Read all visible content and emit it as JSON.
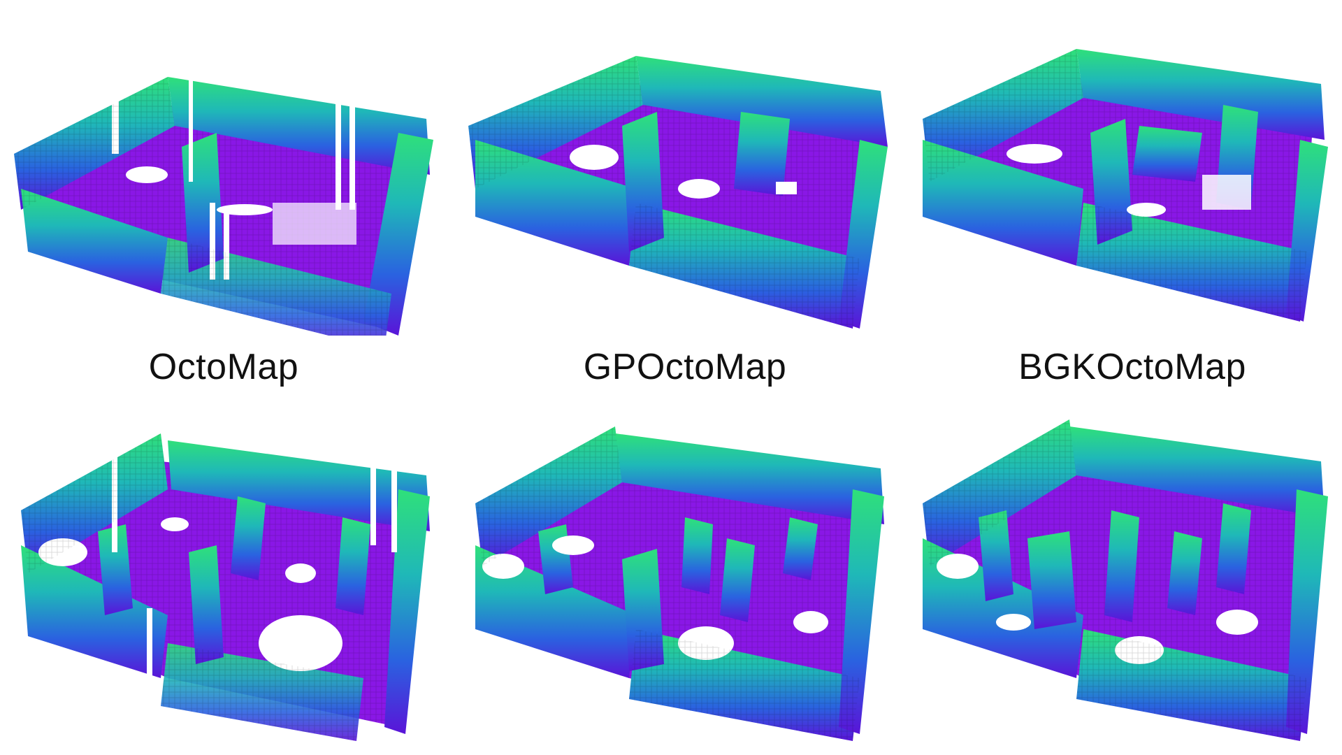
{
  "captions": {
    "octomap": "OctoMap",
    "gpoctomap": "GPOctoMap",
    "bgkoctomap": "BGKOctoMap"
  },
  "colors": {
    "floor": "#8a17e6",
    "floor_dark": "#6e0fc4",
    "wall_top": "#2fe07a",
    "wall_mid": "#1fa8c8",
    "wall_low": "#2a52e0",
    "wall_base": "#5a14d8",
    "caption_text": "#111111"
  },
  "panels": [
    {
      "row": "top",
      "method": "OctoMap",
      "style": "sparse"
    },
    {
      "row": "top",
      "method": "GPOctoMap",
      "style": "smooth"
    },
    {
      "row": "top",
      "method": "BGKOctoMap",
      "style": "blocky"
    },
    {
      "row": "bottom",
      "method": "OctoMap",
      "style": "sparse"
    },
    {
      "row": "bottom",
      "method": "GPOctoMap",
      "style": "smooth"
    },
    {
      "row": "bottom",
      "method": "BGKOctoMap",
      "style": "blocky"
    }
  ]
}
